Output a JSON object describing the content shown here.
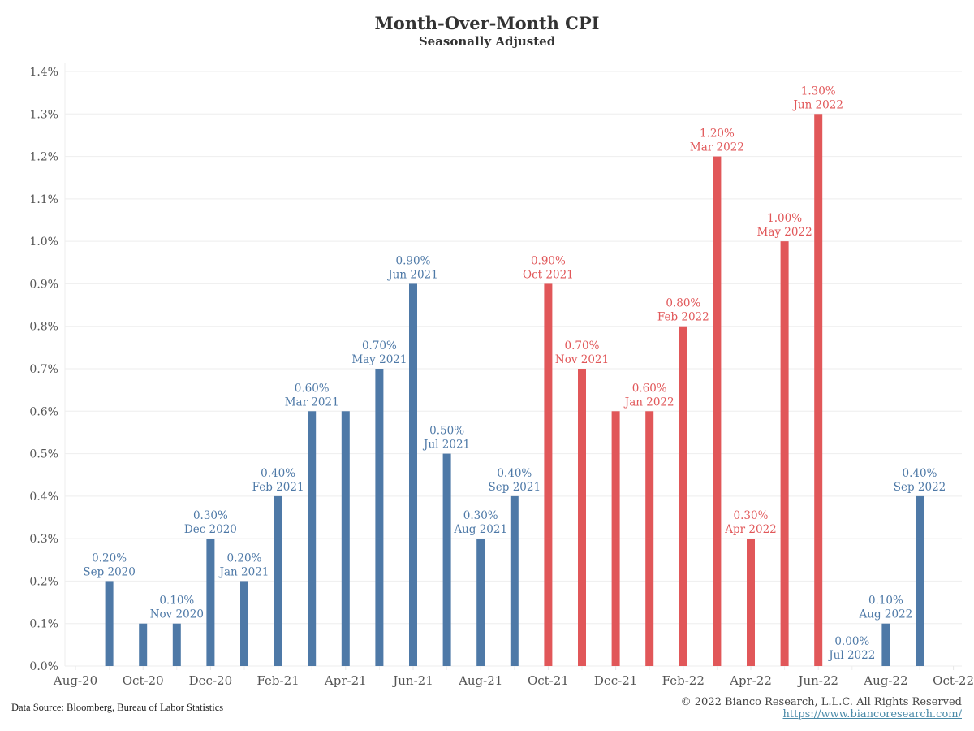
{
  "chart_data": {
    "type": "bar",
    "title": "Month-Over-Month CPI",
    "subtitle": "Seasonally Adjusted",
    "xlabel": "",
    "ylabel": "",
    "ylim": [
      0,
      1.4
    ],
    "yticks": [
      0.0,
      0.1,
      0.2,
      0.3,
      0.4,
      0.5,
      0.6,
      0.7,
      0.8,
      0.9,
      1.0,
      1.1,
      1.2,
      1.3,
      1.4
    ],
    "ytick_labels": [
      "0.0%",
      "0.1%",
      "0.2%",
      "0.3%",
      "0.4%",
      "0.5%",
      "0.6%",
      "0.7%",
      "0.8%",
      "0.9%",
      "1.0%",
      "1.1%",
      "1.2%",
      "1.3%",
      "1.4%"
    ],
    "xtick_labels": [
      "Aug-20",
      "Oct-20",
      "Dec-20",
      "Feb-21",
      "Apr-21",
      "Jun-21",
      "Aug-21",
      "Oct-21",
      "Dec-21",
      "Feb-22",
      "Apr-22",
      "Jun-22",
      "Aug-22",
      "Oct-22"
    ],
    "grid": true,
    "colors": {
      "blue": "#4e79a7",
      "red": "#e15759"
    },
    "bars": [
      {
        "month": "Sep 2020",
        "value": 0.2,
        "color": "blue",
        "label": true
      },
      {
        "month": "Oct 2020",
        "value": 0.1,
        "color": "blue",
        "label": false
      },
      {
        "month": "Nov 2020",
        "value": 0.1,
        "color": "blue",
        "label": true
      },
      {
        "month": "Dec 2020",
        "value": 0.3,
        "color": "blue",
        "label": true
      },
      {
        "month": "Jan 2021",
        "value": 0.2,
        "color": "blue",
        "label": true
      },
      {
        "month": "Feb 2021",
        "value": 0.4,
        "color": "blue",
        "label": true
      },
      {
        "month": "Mar 2021",
        "value": 0.6,
        "color": "blue",
        "label": true
      },
      {
        "month": "Apr 2021",
        "value": 0.6,
        "color": "blue",
        "label": false
      },
      {
        "month": "May 2021",
        "value": 0.7,
        "color": "blue",
        "label": true
      },
      {
        "month": "Jun 2021",
        "value": 0.9,
        "color": "blue",
        "label": true
      },
      {
        "month": "Jul 2021",
        "value": 0.5,
        "color": "blue",
        "label": true
      },
      {
        "month": "Aug 2021",
        "value": 0.3,
        "color": "blue",
        "label": true
      },
      {
        "month": "Sep 2021",
        "value": 0.4,
        "color": "blue",
        "label": true
      },
      {
        "month": "Oct 2021",
        "value": 0.9,
        "color": "red",
        "label": true
      },
      {
        "month": "Nov 2021",
        "value": 0.7,
        "color": "red",
        "label": true
      },
      {
        "month": "Dec 2021",
        "value": 0.6,
        "color": "red",
        "label": false
      },
      {
        "month": "Jan 2022",
        "value": 0.6,
        "color": "red",
        "label": true
      },
      {
        "month": "Feb 2022",
        "value": 0.8,
        "color": "red",
        "label": true
      },
      {
        "month": "Mar 2022",
        "value": 1.2,
        "color": "red",
        "label": true
      },
      {
        "month": "Apr 2022",
        "value": 0.3,
        "color": "red",
        "label": true
      },
      {
        "month": "May 2022",
        "value": 1.0,
        "color": "red",
        "label": true
      },
      {
        "month": "Jun 2022",
        "value": 1.3,
        "color": "red",
        "label": true
      },
      {
        "month": "Jul 2022",
        "value": 0.0,
        "color": "blue",
        "label": true
      },
      {
        "month": "Aug 2022",
        "value": 0.1,
        "color": "blue",
        "label": true
      },
      {
        "month": "Sep 2022",
        "value": 0.4,
        "color": "blue",
        "label": true
      }
    ]
  },
  "footer": {
    "source": "Data Source: Bloomberg, Bureau of Labor Statistics",
    "copyright": "© 2022 Bianco Research, L.L.C. All Rights Reserved",
    "url": "https://www.biancoresearch.com/"
  }
}
